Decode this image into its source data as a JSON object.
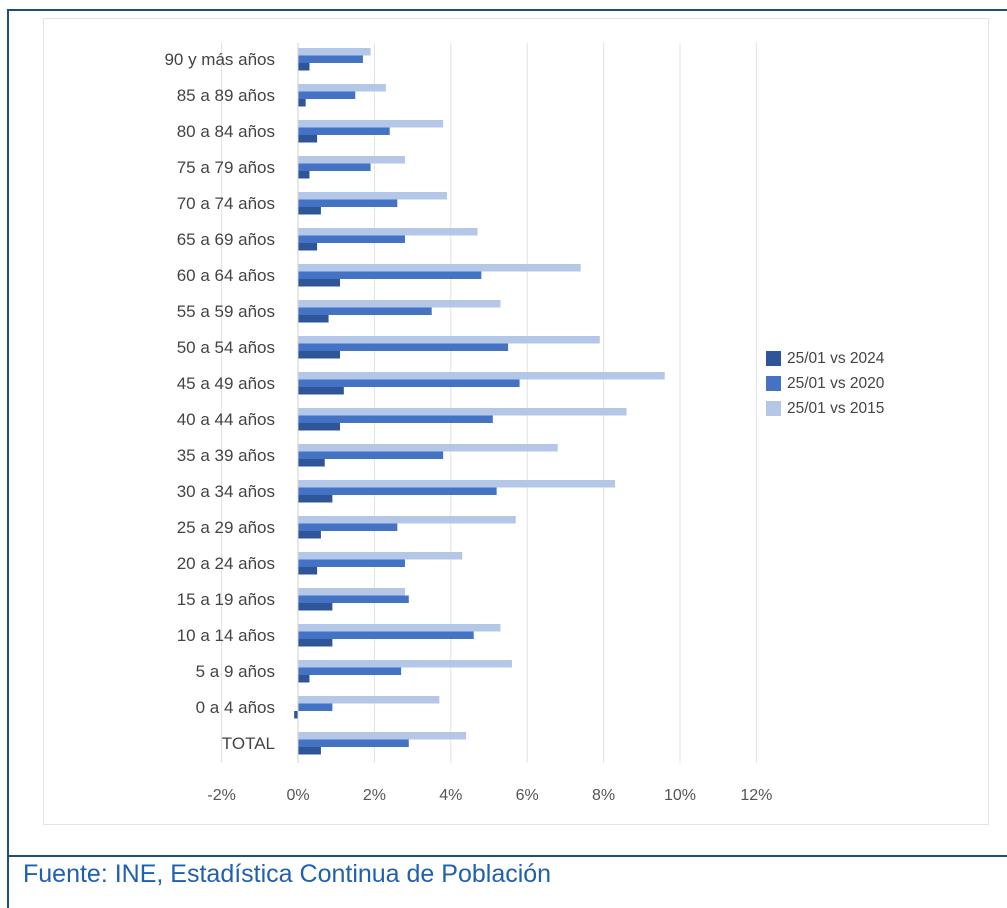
{
  "source": {
    "text": "Fuente: INE, Estadística Continua de Población"
  },
  "chart_data": {
    "type": "bar",
    "orientation": "horizontal",
    "title": "",
    "xlabel": "",
    "ylabel": "",
    "xlim": [
      -2,
      12
    ],
    "xticks": [
      -2,
      0,
      2,
      4,
      6,
      8,
      10,
      12
    ],
    "xtick_labels": [
      "-2%",
      "0%",
      "2%",
      "4%",
      "6%",
      "8%",
      "10%",
      "12%"
    ],
    "grid": "vertical",
    "legend_position": "right",
    "categories": [
      "90 y más años",
      "85 a 89 años",
      "80 a 84 años",
      "75 a 79 años",
      "70 a 74 años",
      "65 a 69 años",
      "60 a 64 años",
      "55 a 59 años",
      "50 a 54 años",
      "45 a 49 años",
      "40 a 44 años",
      "35 a 39 años",
      "30 a 34 años",
      "25 a 29 años",
      "20 a 24 años",
      "15 a 19 años",
      "10 a 14 años",
      "5 a 9 años",
      "0 a 4 años",
      "TOTAL"
    ],
    "series": [
      {
        "name": "25/01 vs 2024",
        "color": "#2e5597",
        "values": [
          0.3,
          0.2,
          0.5,
          0.3,
          0.6,
          0.5,
          1.1,
          0.8,
          1.1,
          1.2,
          1.1,
          0.7,
          0.9,
          0.6,
          0.5,
          0.9,
          0.9,
          0.3,
          -0.1,
          0.6
        ]
      },
      {
        "name": "25/01 vs 2020",
        "color": "#4472c4",
        "values": [
          1.7,
          1.5,
          2.4,
          1.9,
          2.6,
          2.8,
          4.8,
          3.5,
          5.5,
          5.8,
          5.1,
          3.8,
          5.2,
          2.6,
          2.8,
          2.9,
          4.6,
          2.7,
          0.9,
          2.9
        ]
      },
      {
        "name": "25/01 vs 2015",
        "color": "#b4c7e7",
        "values": [
          1.9,
          2.3,
          3.8,
          2.8,
          3.9,
          4.7,
          7.4,
          5.3,
          7.9,
          9.6,
          8.6,
          6.8,
          8.3,
          5.7,
          4.3,
          2.8,
          5.3,
          5.6,
          3.7,
          4.4
        ]
      }
    ]
  }
}
